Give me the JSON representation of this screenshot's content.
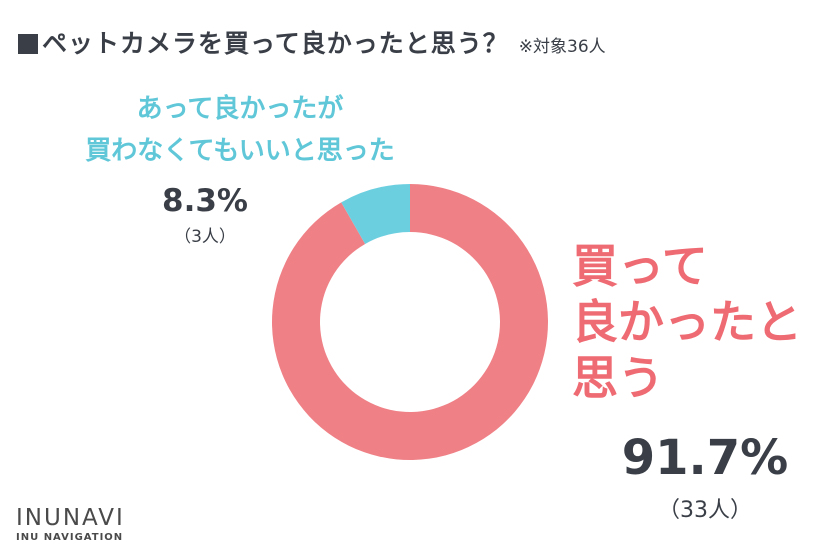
{
  "title": {
    "marker": "■",
    "text": "ペットカメラを買って良かったと思う？",
    "note": "※対象36人"
  },
  "chart_data": {
    "type": "pie",
    "categories": [
      "買って良かったと思う",
      "あって良かったが買わなくてもいいと思った"
    ],
    "values": [
      91.7,
      8.3
    ],
    "counts": [
      33,
      3
    ],
    "colors": [
      "#ef8086",
      "#6ccfe0"
    ],
    "donut": true
  },
  "labels": {
    "small": {
      "line1": "あって良かったが",
      "line2": "買わなくてもいいと思った",
      "percent": "8.3%",
      "count": "（3人）"
    },
    "large": {
      "line1": "買って",
      "line2": "良かったと",
      "line3": "思う",
      "percent": "91.7%",
      "count": "（33人）"
    }
  },
  "brand": {
    "name": "INUNAVI",
    "sub": "INU NAVIGATION"
  }
}
